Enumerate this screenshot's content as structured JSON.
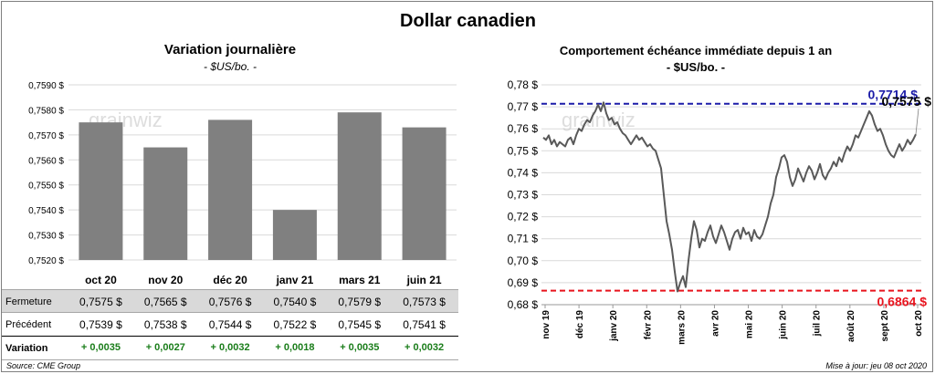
{
  "title": "Dollar canadien",
  "left_panel": {
    "title": "Variation  journalière",
    "subtitle": "- $US/bo. -",
    "watermark": "grainwiz"
  },
  "right_panel": {
    "title": "Comportement échéance immédiate depuis 1 an",
    "subtitle": "- $US/bo. -",
    "watermark": "grainwiz"
  },
  "table": {
    "rows": [
      {
        "label": "Fermeture",
        "values": [
          "0,7575  $",
          "0,7565  $",
          "0,7576  $",
          "0,7540  $",
          "0,7579  $",
          "0,7573  $"
        ]
      },
      {
        "label": "Précédent",
        "values": [
          "0,7539  $",
          "0,7538  $",
          "0,7544  $",
          "0,7522  $",
          "0,7545  $",
          "0,7541  $"
        ]
      },
      {
        "label": "Variation",
        "values": [
          "+ 0,0035",
          "+ 0,0027",
          "+ 0,0032",
          "+ 0,0018",
          "+ 0,0035",
          "+ 0,0032"
        ]
      }
    ]
  },
  "footer": {
    "source": "Source: CME Group",
    "updated": "Mise à jour: jeu 08 oct 2020"
  },
  "colors": {
    "bar": "#808080",
    "line": "#595959",
    "high_line": "#1c1ca8",
    "low_line": "#e8141e",
    "variation_positive": "#1a7d1a",
    "fermeture_row_bg": "#d9d9d9"
  },
  "chart_data": [
    {
      "type": "bar",
      "title": "Variation  journalière",
      "subtitle": "- $US/bo. -",
      "categories": [
        "oct 20",
        "nov 20",
        "déc 20",
        "janv 21",
        "mars 21",
        "juin 21"
      ],
      "values": [
        0.7575,
        0.7565,
        0.7576,
        0.754,
        0.7579,
        0.7573
      ],
      "ylim": [
        0.752,
        0.759
      ],
      "yticks": [
        0.752,
        0.753,
        0.754,
        0.755,
        0.756,
        0.757,
        0.758,
        0.759
      ],
      "ytick_labels": [
        "0,7520 $",
        "0,7530 $",
        "0,7540 $",
        "0,7550 $",
        "0,7560 $",
        "0,7570 $",
        "0,7580 $",
        "0,7590 $"
      ],
      "grid": true
    },
    {
      "type": "line",
      "title": "Comportement échéance immédiate depuis 1 an",
      "subtitle": "- $US/bo. -",
      "x_labels": [
        "nov 19",
        "déc 19",
        "janv 20",
        "févr 20",
        "mars 20",
        "avr 20",
        "mai 20",
        "juin 20",
        "juil 20",
        "août 20",
        "sept 20",
        "oct 20"
      ],
      "ylim": [
        0.68,
        0.78
      ],
      "yticks": [
        0.68,
        0.69,
        0.7,
        0.71,
        0.72,
        0.73,
        0.74,
        0.75,
        0.76,
        0.77,
        0.78
      ],
      "ytick_labels": [
        "0,68 $",
        "0,69 $",
        "0,70 $",
        "0,71 $",
        "0,72 $",
        "0,73 $",
        "0,74 $",
        "0,75 $",
        "0,76 $",
        "0,77 $",
        "0,78 $"
      ],
      "grid": true,
      "series": [
        {
          "values": [
            0.756,
            0.755,
            0.757,
            0.753,
            0.755,
            0.752,
            0.754,
            0.753,
            0.752,
            0.755,
            0.756,
            0.753,
            0.757,
            0.76,
            0.759,
            0.762,
            0.764,
            0.763,
            0.766,
            0.768,
            0.771,
            0.768,
            0.772,
            0.767,
            0.764,
            0.765,
            0.762,
            0.763,
            0.76,
            0.758,
            0.757,
            0.755,
            0.753,
            0.755,
            0.757,
            0.755,
            0.756,
            0.754,
            0.752,
            0.753,
            0.751,
            0.75,
            0.746,
            0.742,
            0.73,
            0.718,
            0.712,
            0.705,
            0.695,
            0.686,
            0.69,
            0.693,
            0.688,
            0.7,
            0.71,
            0.718,
            0.714,
            0.706,
            0.71,
            0.709,
            0.713,
            0.716,
            0.711,
            0.708,
            0.712,
            0.716,
            0.713,
            0.709,
            0.705,
            0.71,
            0.713,
            0.714,
            0.71,
            0.715,
            0.712,
            0.713,
            0.709,
            0.714,
            0.711,
            0.71,
            0.712,
            0.716,
            0.72,
            0.726,
            0.73,
            0.738,
            0.742,
            0.747,
            0.748,
            0.745,
            0.738,
            0.734,
            0.737,
            0.742,
            0.739,
            0.736,
            0.74,
            0.743,
            0.741,
            0.737,
            0.74,
            0.744,
            0.739,
            0.737,
            0.74,
            0.742,
            0.745,
            0.743,
            0.747,
            0.745,
            0.749,
            0.752,
            0.75,
            0.753,
            0.757,
            0.756,
            0.759,
            0.762,
            0.765,
            0.768,
            0.766,
            0.762,
            0.759,
            0.76,
            0.757,
            0.753,
            0.75,
            0.748,
            0.747,
            0.75,
            0.753,
            0.75,
            0.752,
            0.755,
            0.753,
            0.755,
            0.7575
          ],
          "last_label": "0,7575 $"
        }
      ],
      "reference_lines": [
        {
          "name": "high",
          "value": 0.7714,
          "label": "0,7714 $"
        },
        {
          "name": "low",
          "value": 0.6864,
          "label": "0,6864 $"
        }
      ]
    }
  ]
}
